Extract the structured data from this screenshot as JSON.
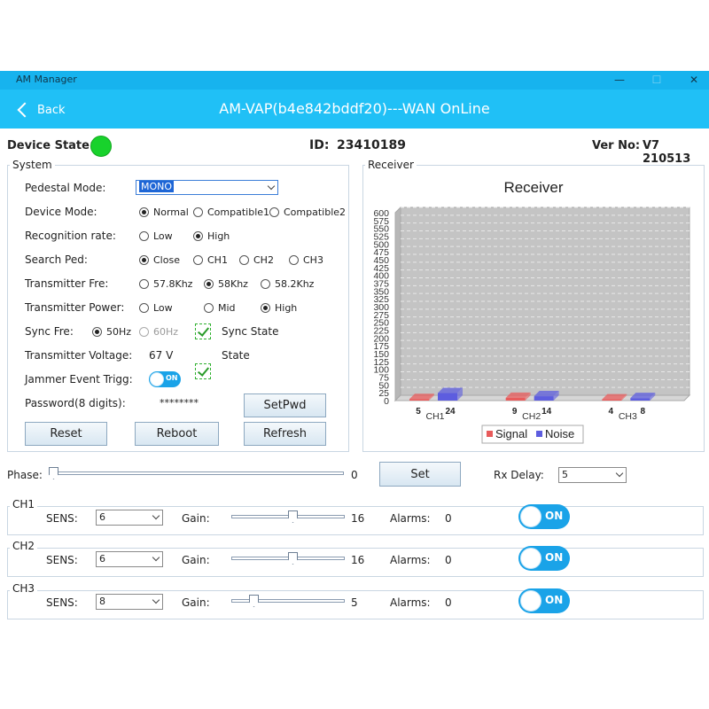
{
  "window": {
    "title": "AM Manager",
    "minimize": "—",
    "maximize": "☐",
    "close": "✕"
  },
  "header": {
    "back_label": "Back",
    "title": "AM-VAP(b4e842bddf20)---WAN OnLine"
  },
  "info": {
    "device_state_label": "Device State:",
    "device_state_color": "#18d22c",
    "id_label": "ID:",
    "id_value": "23410189",
    "ver_label": "Ver No:",
    "ver_value": "V7 210513"
  },
  "system": {
    "title": "System",
    "pedestal_mode": {
      "label": "Pedestal Mode:",
      "value": "MONO"
    },
    "device_mode": {
      "label": "Device Mode:",
      "options": [
        "Normal",
        "Compatible1",
        "Compatible2"
      ],
      "selected": 0
    },
    "recognition_rate": {
      "label": "Recognition rate:",
      "options": [
        "Low",
        "High"
      ],
      "selected": 1
    },
    "search_ped": {
      "label": "Search Ped:",
      "options": [
        "Close",
        "CH1",
        "CH2",
        "CH3"
      ],
      "selected": 0
    },
    "transmitter_fre": {
      "label": "Transmitter Fre:",
      "options": [
        "57.8Khz",
        "58Khz",
        "58.2Khz"
      ],
      "selected": 1
    },
    "transmitter_power": {
      "label": "Transmitter Power:",
      "options": [
        "Low",
        "Mid",
        "High"
      ],
      "selected": 2
    },
    "sync_fre": {
      "label": "Sync Fre:",
      "options": [
        "50Hz",
        "60Hz"
      ],
      "selected": 0,
      "sync_state_label": "Sync State"
    },
    "transmitter_voltage": {
      "label": "Transmitter Voltage:",
      "value": "67 V",
      "state_label": "State"
    },
    "jammer": {
      "label": "Jammer Event Trigg:",
      "toggle": "ON"
    },
    "password": {
      "label": "Password(8 digits):",
      "value": "********",
      "setpwd": "SetPwd"
    },
    "buttons": {
      "reset": "Reset",
      "reboot": "Reboot",
      "refresh": "Refresh"
    }
  },
  "receiver": {
    "title": "Receiver",
    "colors": {
      "signal": "#e85b5b",
      "noise": "#5d5ddf",
      "plot_bg": "#c4c4c4"
    }
  },
  "chart_data": {
    "type": "bar",
    "title": "Receiver",
    "categories": [
      "CH1",
      "CH2",
      "CH3"
    ],
    "series": [
      {
        "name": "Signal",
        "values": [
          5,
          9,
          4
        ]
      },
      {
        "name": "Noise",
        "values": [
          24,
          14,
          8
        ]
      }
    ],
    "ylim": [
      0,
      600
    ],
    "yticks": [
      0,
      25,
      50,
      75,
      100,
      125,
      150,
      175,
      200,
      225,
      250,
      275,
      300,
      325,
      350,
      375,
      400,
      425,
      450,
      475,
      500,
      525,
      550,
      575,
      600
    ],
    "grid": true,
    "legend": "bottom"
  },
  "phase": {
    "label": "Phase:",
    "value": "0",
    "level": 0,
    "set_label": "Set",
    "rx_delay_label": "Rx Delay:",
    "rx_delay_value": "5"
  },
  "channels": [
    {
      "name": "CH1",
      "sens_label": "SENS:",
      "sens": "6",
      "gain_label": "Gain:",
      "gain": "16",
      "gain_level": 0.55,
      "alarms_label": "Alarms:",
      "alarms": "0",
      "toggle": "ON"
    },
    {
      "name": "CH2",
      "sens_label": "SENS:",
      "sens": "6",
      "gain_label": "Gain:",
      "gain": "16",
      "gain_level": 0.55,
      "alarms_label": "Alarms:",
      "alarms": "0",
      "toggle": "ON"
    },
    {
      "name": "CH3",
      "sens_label": "SENS:",
      "sens": "8",
      "gain_label": "Gain:",
      "gain": "5",
      "gain_level": 0.17,
      "alarms_label": "Alarms:",
      "alarms": "0",
      "toggle": "ON"
    }
  ]
}
